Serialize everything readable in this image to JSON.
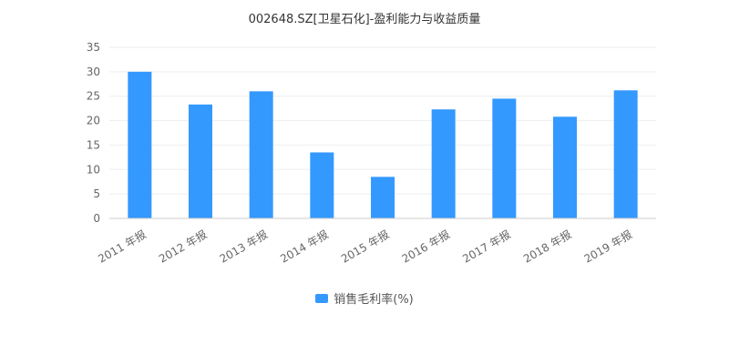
{
  "chart_data": {
    "type": "bar",
    "title": "002648.SZ[卫星石化]-盈利能力与收益质量",
    "categories": [
      "2011 年报",
      "2012 年报",
      "2013 年报",
      "2014 年报",
      "2015 年报",
      "2016 年报",
      "2017 年报",
      "2018 年报",
      "2019 年报"
    ],
    "series": [
      {
        "name": "销售毛利率(%)",
        "values": [
          30.0,
          23.3,
          26.0,
          13.5,
          8.5,
          22.3,
          24.5,
          20.8,
          26.2
        ],
        "color": "#3399ff"
      }
    ],
    "ylim": [
      0,
      35
    ],
    "yticks": [
      0,
      5,
      10,
      15,
      20,
      25,
      30,
      35
    ],
    "grid": true,
    "legend_position": "bottom-center"
  }
}
